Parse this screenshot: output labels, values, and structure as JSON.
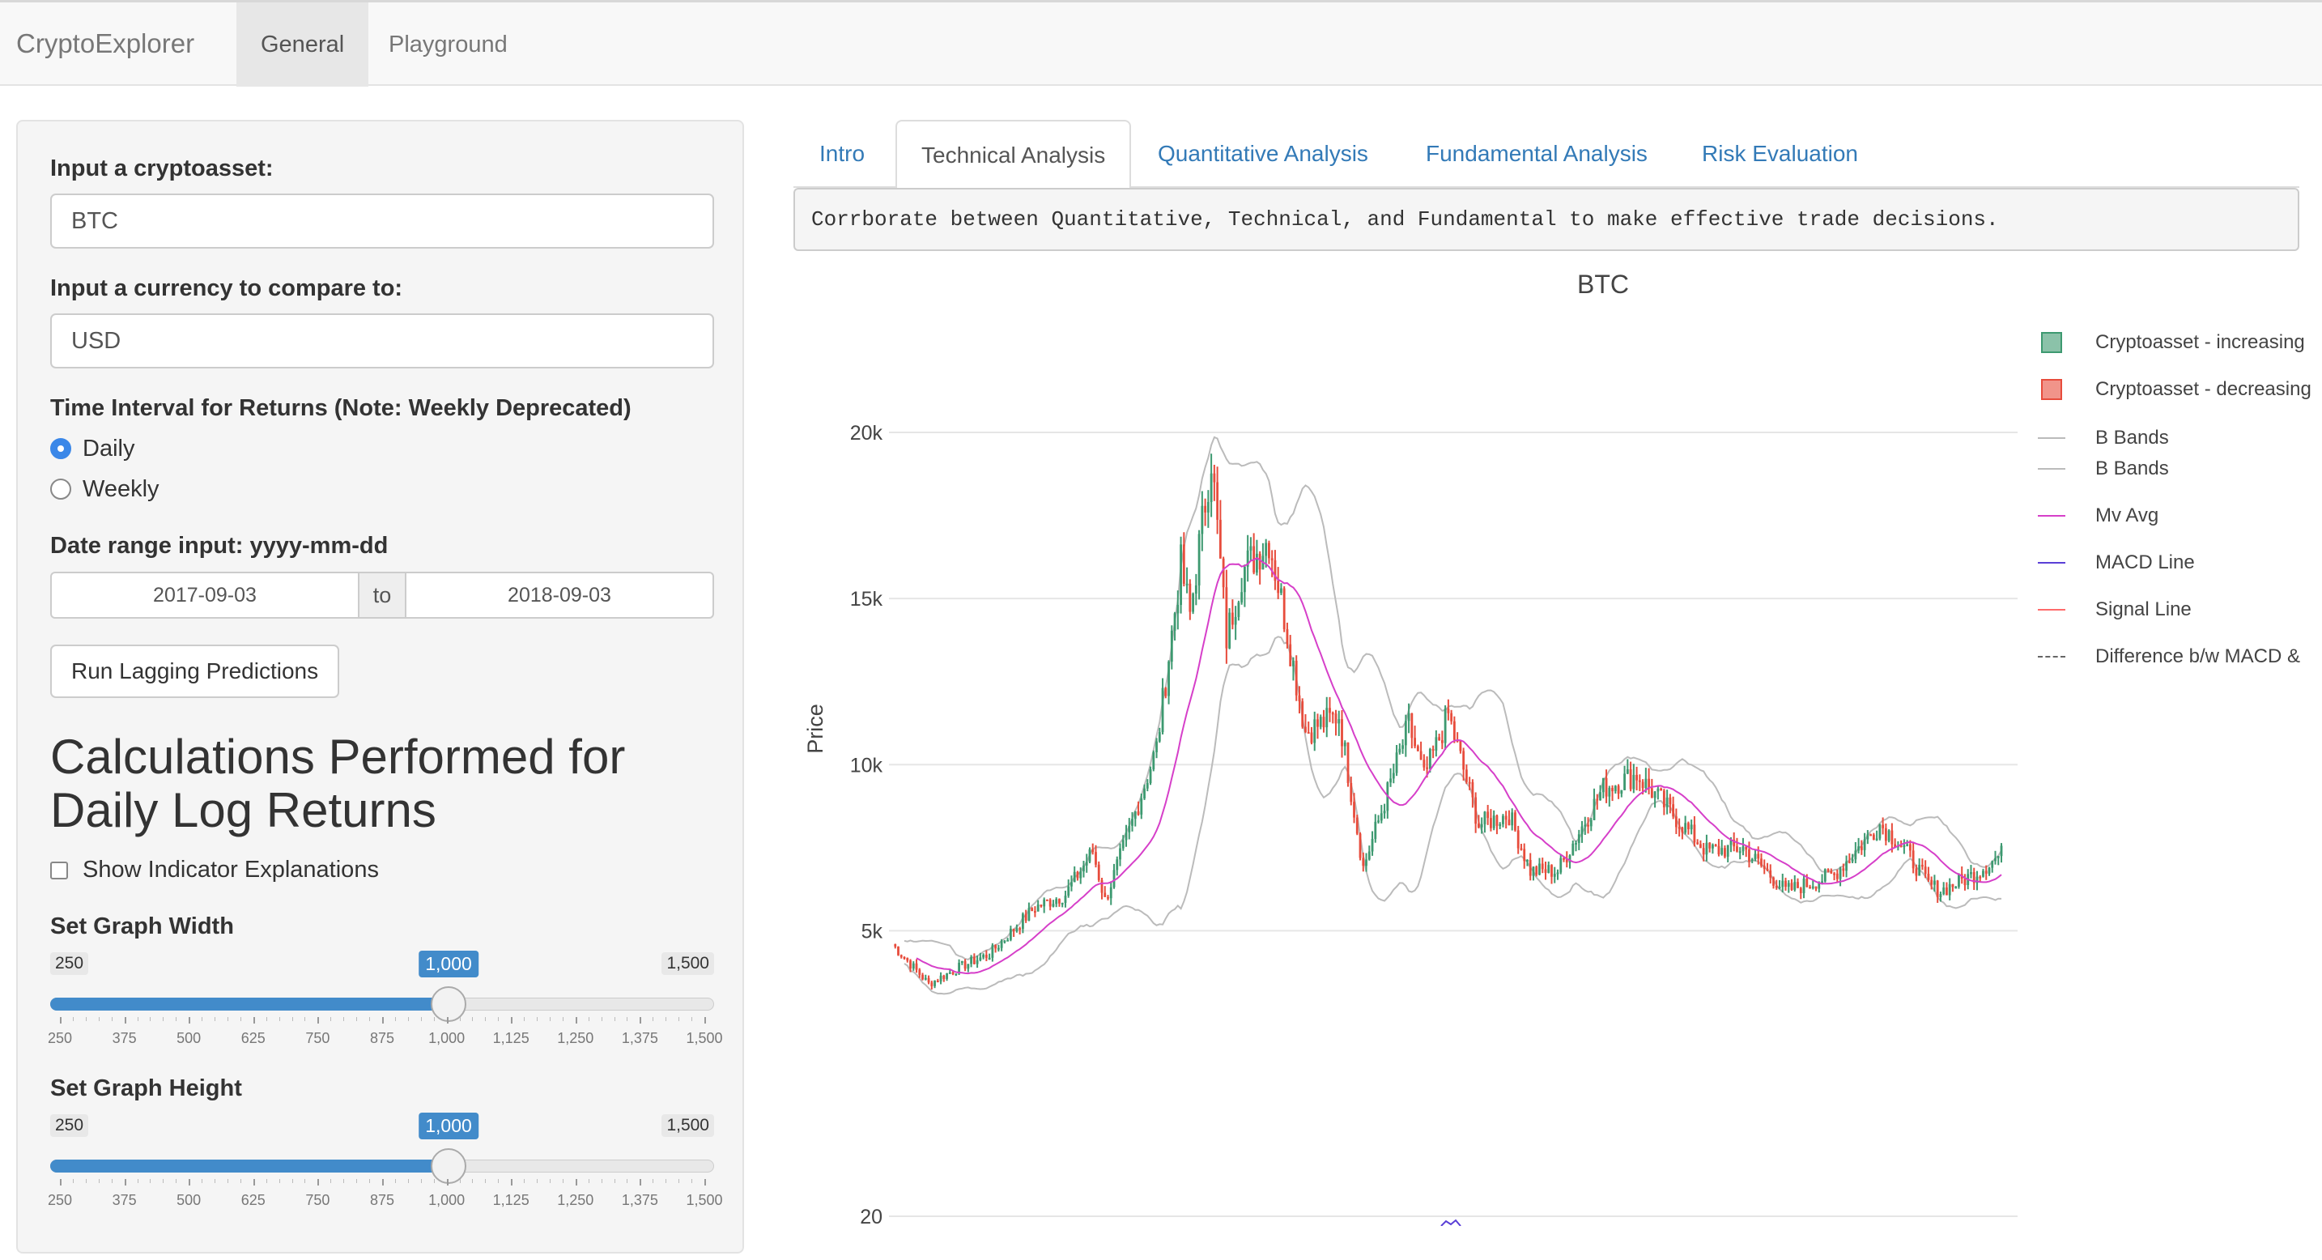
{
  "navbar": {
    "brand": "CryptoExplorer",
    "tabs": [
      {
        "label": "General",
        "active": true
      },
      {
        "label": "Playground",
        "active": false
      }
    ]
  },
  "sidebar": {
    "asset": {
      "label": "Input a cryptoasset:",
      "value": "BTC"
    },
    "currency": {
      "label": "Input a currency to compare to:",
      "value": "USD"
    },
    "interval": {
      "label": "Time Interval for Returns (Note: Weekly Deprecated)",
      "options": [
        "Daily",
        "Weekly"
      ],
      "selected": "Daily"
    },
    "date_range": {
      "label": "Date range input: yyyy-mm-dd",
      "start": "2017-09-03",
      "separator": "to",
      "end": "2018-09-03"
    },
    "run_button": "Run Lagging Predictions",
    "heading": "Calculations Performed for Daily Log Returns",
    "explanations_checkbox": {
      "label": "Show Indicator Explanations",
      "checked": false
    },
    "graph_width": {
      "label": "Set Graph Width",
      "min_label": "250",
      "max_label": "1,500",
      "value_label": "1,000",
      "value_fraction": 0.6,
      "ticks": [
        "250",
        "375",
        "500",
        "625",
        "750",
        "875",
        "1,000",
        "1,125",
        "1,250",
        "1,375",
        "1,500"
      ]
    },
    "graph_height": {
      "label": "Set Graph Height",
      "min_label": "250",
      "max_label": "1,500",
      "value_label": "1,000",
      "value_fraction": 0.6,
      "ticks": [
        "250",
        "375",
        "500",
        "625",
        "750",
        "875",
        "1,000",
        "1,125",
        "1,250",
        "1,375",
        "1,500"
      ]
    }
  },
  "main": {
    "tabs": [
      {
        "label": "Intro",
        "active": false
      },
      {
        "label": "Technical Analysis",
        "active": true
      },
      {
        "label": "Quantitative Analysis",
        "active": false
      },
      {
        "label": "Fundamental Analysis",
        "active": false
      },
      {
        "label": "Risk Evaluation",
        "active": false
      }
    ],
    "info_text": "Corrborate between Quantitative, Technical, and Fundamental to make effective trade decisions."
  },
  "chart_data": {
    "type": "candlestick",
    "title": "BTC",
    "ylabel": "Price",
    "y_ticks": [
      "5k",
      "10k",
      "15k",
      "20k"
    ],
    "lower_panel_tick": "20",
    "ylim": [
      2500,
      22000
    ],
    "x_range": [
      "2017-09-03",
      "2018-09-03"
    ],
    "colors": {
      "increasing": "#3d9970",
      "decreasing": "#e74c3c",
      "bbands": "#bbbbbb",
      "mvavg": "#d63fc9",
      "macd": "#5a3fd6",
      "signal": "#ff6b6b",
      "diff": "#666666"
    },
    "legend": [
      {
        "name": "Cryptoasset - increasing",
        "kind": "box",
        "color": "#3d9970"
      },
      {
        "name": "Cryptoasset - decreasing",
        "kind": "box",
        "color": "#e74c3c"
      },
      {
        "name": "B Bands",
        "kind": "line",
        "color": "#bbbbbb"
      },
      {
        "name": "B Bands",
        "kind": "line",
        "color": "#bbbbbb"
      },
      {
        "name": "Mv Avg",
        "kind": "line",
        "color": "#d63fc9"
      },
      {
        "name": "MACD Line",
        "kind": "line",
        "color": "#5a3fd6"
      },
      {
        "name": "Signal Line",
        "kind": "line",
        "color": "#ff6b6b"
      },
      {
        "name": "Difference b/w MACD &",
        "kind": "dash",
        "color": "#666666"
      }
    ],
    "close_keypoints": [
      [
        "2017-09-03",
        4600
      ],
      [
        "2017-09-15",
        3400
      ],
      [
        "2017-09-25",
        3900
      ],
      [
        "2017-10-05",
        4300
      ],
      [
        "2017-10-20",
        5700
      ],
      [
        "2017-10-30",
        6100
      ],
      [
        "2017-11-08",
        7400
      ],
      [
        "2017-11-12",
        5900
      ],
      [
        "2017-11-20",
        8000
      ],
      [
        "2017-11-29",
        10500
      ],
      [
        "2017-12-07",
        16000
      ],
      [
        "2017-12-10",
        14500
      ],
      [
        "2017-12-17",
        19300
      ],
      [
        "2017-12-22",
        13800
      ],
      [
        "2017-12-27",
        15800
      ],
      [
        "2018-01-05",
        16800
      ],
      [
        "2018-01-10",
        14500
      ],
      [
        "2018-01-17",
        11000
      ],
      [
        "2018-01-28",
        11500
      ],
      [
        "2018-02-05",
        6900
      ],
      [
        "2018-02-10",
        8300
      ],
      [
        "2018-02-20",
        11200
      ],
      [
        "2018-02-25",
        9600
      ],
      [
        "2018-03-05",
        11500
      ],
      [
        "2018-03-15",
        8200
      ],
      [
        "2018-03-25",
        8500
      ],
      [
        "2018-04-01",
        6800
      ],
      [
        "2018-04-10",
        6800
      ],
      [
        "2018-04-25",
        9300
      ],
      [
        "2018-05-06",
        9700
      ],
      [
        "2018-05-20",
        8300
      ],
      [
        "2018-05-29",
        7400
      ],
      [
        "2018-06-10",
        7500
      ],
      [
        "2018-06-24",
        6200
      ],
      [
        "2018-07-01",
        6400
      ],
      [
        "2018-07-10",
        6700
      ],
      [
        "2018-07-25",
        8200
      ],
      [
        "2018-08-01",
        7600
      ],
      [
        "2018-08-10",
        6400
      ],
      [
        "2018-08-14",
        6200
      ],
      [
        "2018-08-25",
        6700
      ],
      [
        "2018-09-03",
        7300
      ]
    ]
  }
}
